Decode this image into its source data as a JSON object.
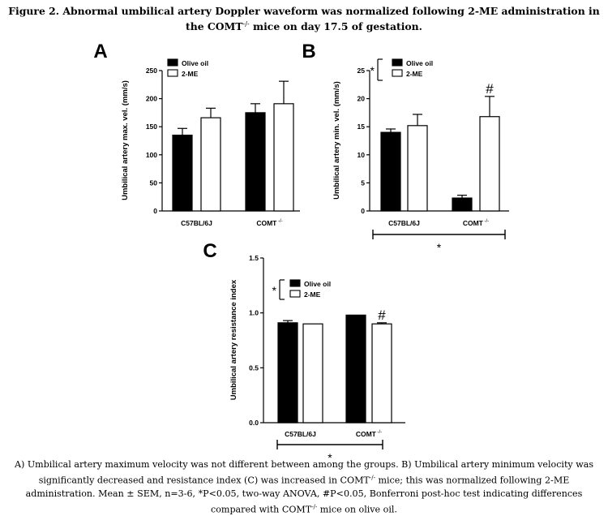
{
  "figure": {
    "title_main": "Figure 2. Abnormal umbilical artery Doppler waveform was normalized following 2-ME administration in the COMT",
    "title_sup": "-/-",
    "title_tail": " mice on day 17.5 of gestation.",
    "caption_a": "A) Umbilical artery maximum velocity was not different between among the groups. B) Umbilical artery minimum velocity was significantly decreased and resistance index (C) was increased in COMT",
    "caption_sup1": "-/-",
    "caption_b": " mice; this was normalized following 2-ME administration. Mean ± SEM, n=3-6, *P<0.05, two-way ANOVA, #P<0.05, Bonferroni post-hoc test indicating differences compared with COMT",
    "caption_sup2": "-/-",
    "caption_c": " mice on olive oil."
  },
  "colors": {
    "olive_oil": "#000000",
    "two_me": "#ffffff",
    "stroke": "#000000"
  },
  "chart_data": [
    {
      "panel": "A",
      "type": "bar",
      "ylabel": "Umbilical artery max. vel. (mm/s)",
      "ylim": [
        0,
        250
      ],
      "yticks": [
        0,
        50,
        100,
        150,
        200,
        250
      ],
      "ytick_labels": [
        "0",
        "50",
        "100",
        "150",
        "200",
        "250"
      ],
      "categories": [
        "C57BL/6J",
        "COMT"
      ],
      "category_sups": [
        "",
        "-/-"
      ],
      "series": [
        {
          "name": "Olive oil",
          "values": [
            135,
            175
          ],
          "errors": [
            12,
            16
          ]
        },
        {
          "name": "2-ME",
          "values": [
            166,
            191
          ],
          "errors": [
            17,
            40
          ]
        }
      ],
      "annotations": [],
      "legend_star": "",
      "bottom_star": ""
    },
    {
      "panel": "B",
      "type": "bar",
      "ylabel": "Umbilical artery min. vel. (mm/s)",
      "ylim": [
        0,
        25
      ],
      "yticks": [
        0,
        5,
        10,
        15,
        20,
        25
      ],
      "ytick_labels": [
        "0",
        "5",
        "10",
        "15",
        "20",
        "25"
      ],
      "categories": [
        "C57BL/6J",
        "COMT"
      ],
      "category_sups": [
        "",
        "-/-"
      ],
      "series": [
        {
          "name": "Olive oil",
          "values": [
            14.0,
            2.3
          ],
          "errors": [
            0.6,
            0.5
          ]
        },
        {
          "name": "2-ME",
          "values": [
            15.2,
            16.8
          ],
          "errors": [
            2.0,
            3.6
          ]
        }
      ],
      "annotations": [
        {
          "text": "#",
          "series": 1,
          "category": 1
        }
      ],
      "legend_star": "*",
      "bottom_star": "*"
    },
    {
      "panel": "C",
      "type": "bar",
      "ylabel": "Umbilical artery resistance index",
      "ylim": [
        0,
        1.5
      ],
      "yticks": [
        0,
        0.5,
        1.0,
        1.5
      ],
      "ytick_labels": [
        "0.0",
        "0.5",
        "1.0",
        "1.5"
      ],
      "categories": [
        "C57BL/6J",
        "COMT"
      ],
      "category_sups": [
        "",
        "-/-"
      ],
      "series": [
        {
          "name": "Olive oil",
          "values": [
            0.91,
            0.98
          ],
          "errors": [
            0.02,
            0.0
          ]
        },
        {
          "name": "2-ME",
          "values": [
            0.9,
            0.9
          ],
          "errors": [
            0.0,
            0.01
          ]
        }
      ],
      "annotations": [
        {
          "text": "#",
          "series": 1,
          "category": 1
        }
      ],
      "legend_star": "*",
      "bottom_star": "*"
    }
  ]
}
